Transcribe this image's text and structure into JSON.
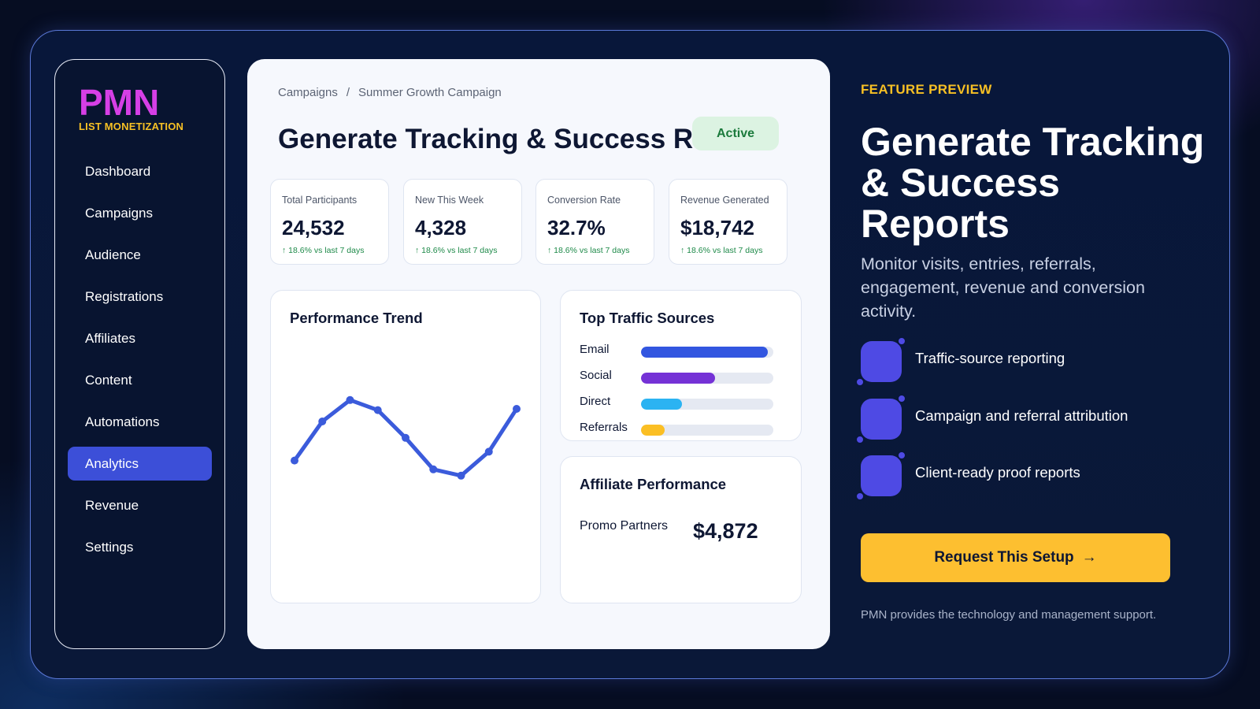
{
  "brand": {
    "name": "PMN",
    "subtitle": "LIST MONETIZATION"
  },
  "sidebar": {
    "items": [
      {
        "label": "Dashboard",
        "active": false
      },
      {
        "label": "Campaigns",
        "active": false
      },
      {
        "label": "Audience",
        "active": false
      },
      {
        "label": "Registrations",
        "active": false
      },
      {
        "label": "Affiliates",
        "active": false
      },
      {
        "label": "Content",
        "active": false
      },
      {
        "label": "Automations",
        "active": false
      },
      {
        "label": "Analytics",
        "active": true
      },
      {
        "label": "Revenue",
        "active": false
      },
      {
        "label": "Settings",
        "active": false
      }
    ]
  },
  "main": {
    "breadcrumb": {
      "root": "Campaigns",
      "separator": "/",
      "current": "Summer Growth Campaign"
    },
    "title": "Generate Tracking & Success Reports",
    "status": "Active",
    "kpis": [
      {
        "label": "Total Participants",
        "value": "24,532",
        "delta": "↑ 18.6% vs last 7 days"
      },
      {
        "label": "New This Week",
        "value": "4,328",
        "delta": "↑ 18.6% vs last 7 days"
      },
      {
        "label": "Conversion Rate",
        "value": "32.7%",
        "delta": "↑ 18.6% vs last 7 days"
      },
      {
        "label": "Revenue Generated",
        "value": "$18,742",
        "delta": "↑ 18.6% vs last 7 days"
      }
    ],
    "trend": {
      "title": "Performance Trend",
      "color": "#3b5bdb",
      "values": [
        34,
        65,
        82,
        74,
        52,
        27,
        22,
        41,
        75
      ]
    },
    "traffic": {
      "title": "Top Traffic Sources",
      "sources": [
        {
          "label": "Email",
          "share": 0.96,
          "color": "#3256e0"
        },
        {
          "label": "Social",
          "share": 0.56,
          "color": "#7532d6"
        },
        {
          "label": "Direct",
          "share": 0.31,
          "color": "#2bb3f2"
        },
        {
          "label": "Referrals",
          "share": 0.18,
          "color": "#fbbf24"
        }
      ]
    },
    "affiliate": {
      "title": "Affiliate Performance",
      "name": "Promo Partners",
      "value": "$4,872"
    }
  },
  "hero": {
    "eyebrow": "FEATURE PREVIEW",
    "title": "Generate Tracking & Success Reports",
    "description": "Monitor visits, entries, referrals, engagement, revenue and conversion activity.",
    "features": [
      "Traffic-source reporting",
      "Campaign and referral attribution",
      "Client-ready proof reports"
    ],
    "cta": "Request This Setup",
    "cta_arrow": "→",
    "footer": "PMN provides the technology and management support."
  },
  "colors": {
    "accent": "#3c4fd8",
    "brand": "#d63fe6",
    "highlight": "#f7c024",
    "cta": "#fdbf30",
    "positive": "#1e8a49"
  }
}
